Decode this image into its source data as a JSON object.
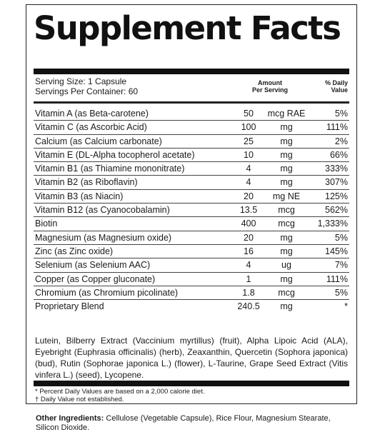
{
  "title": "Supplement Facts",
  "serving": {
    "size": "Serving Size: 1 Capsule",
    "per_container": "Servings Per Container: 60"
  },
  "headers": {
    "amount_line1": "Amount",
    "amount_line2": "Per Serving",
    "dv_line1": "% Daily",
    "dv_line2": "Value"
  },
  "nutrients": [
    {
      "name": "Vitamin A (as Beta-carotene)",
      "amount": "50",
      "unit": "mcg RAE",
      "dv": "5%"
    },
    {
      "name": "Vitamin C (as Ascorbic Acid)",
      "amount": "100",
      "unit": "mg",
      "dv": "111%"
    },
    {
      "name": "Calcium (as Calcium carbonate)",
      "amount": "25",
      "unit": "mg",
      "dv": "2%"
    },
    {
      "name": "Vitamin E (DL-Alpha tocopherol acetate)",
      "amount": "10",
      "unit": "mg",
      "dv": "66%"
    },
    {
      "name": "Vitamin B1 (as Thiamine mononitrate)",
      "amount": "4",
      "unit": "mg",
      "dv": "333%"
    },
    {
      "name": "Vitamin B2 (as Riboflavin)",
      "amount": "4",
      "unit": "mg",
      "dv": "307%"
    },
    {
      "name": "Vitamin B3 (as Niacin)",
      "amount": "20",
      "unit": "mg NE",
      "dv": "125%"
    },
    {
      "name": "Vitamin B12 (as Cyanocobalamin)",
      "amount": "13.5",
      "unit": "mcg",
      "dv": "562%"
    },
    {
      "name": "Biotin",
      "amount": "400",
      "unit": "mcg",
      "dv": "1,333%"
    },
    {
      "name": "Magnesium (as Magnesium oxide)",
      "amount": "20",
      "unit": "mg",
      "dv": "5%"
    },
    {
      "name": "Zinc (as Zinc oxide)",
      "amount": "16",
      "unit": "mg",
      "dv": "145%"
    },
    {
      "name": "Selenium (as Selenium AAC)",
      "amount": "4",
      "unit": "ug",
      "dv": "7%"
    },
    {
      "name": "Copper (as Copper gluconate)",
      "amount": "1",
      "unit": "mg",
      "dv": "111%"
    },
    {
      "name": "Chromium (as Chromium picolinate)",
      "amount": "1.8",
      "unit": "mcg",
      "dv": "5%"
    },
    {
      "name": "Proprietary Blend",
      "amount": "240.5",
      "unit": "mg",
      "dv": "*"
    }
  ],
  "blend_ingredients": "Lutein, Bilberry Extract (Vaccinium myrtillus) (fruit), Alpha Lipoic Acid (ALA), Eyebright (Euphrasia officinalis) (herb), Zeaxanthin, Quercetin (Sophora japonica) (bud), Rutin (Sophorae japonica L.) (flower), L-Taurine, Grape Seed Extract (Vitis vinfera L.) (seed), Lycopene.",
  "footnotes": {
    "percent": "* Percent Daily Values are based on a 2,000 calorie diet.",
    "dagger": "† Daily Value not established."
  },
  "other": {
    "label": "Other Ingredients:",
    "text": " Cellulose (Vegetable Capsule), Rice Flour, Magnesium Stearate, Silicon Dioxide."
  }
}
